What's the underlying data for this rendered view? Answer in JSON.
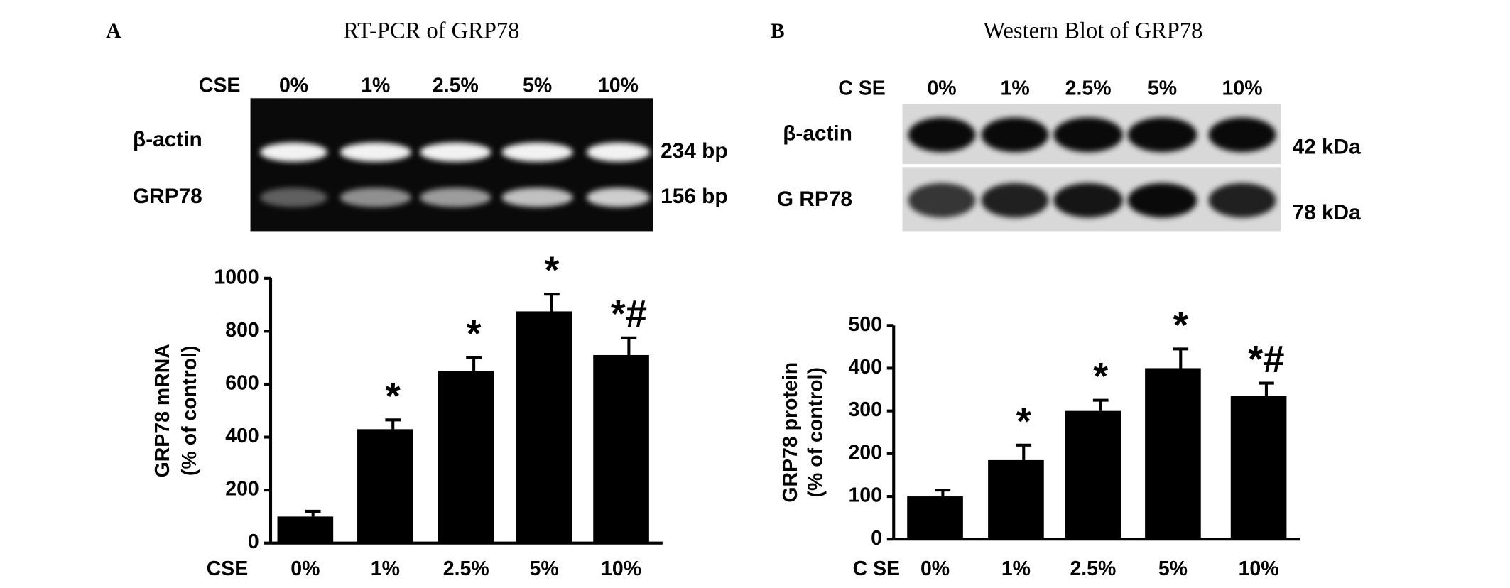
{
  "panels": [
    {
      "letter": "A",
      "title": "RT-PCR of GRP78",
      "gel": {
        "row_header": "CSE",
        "lanes": [
          "0%",
          "1%",
          "2.5%",
          "5%",
          "10%"
        ],
        "bands": [
          {
            "name": "β-actin",
            "size": "234 bp"
          },
          {
            "name": "GRP78",
            "size": "156 bp"
          }
        ]
      }
    },
    {
      "letter": "B",
      "title": "Western Blot of GRP78",
      "gel": {
        "row_header": "C SE",
        "lanes": [
          "0%",
          "1%",
          "2.5%",
          "5%",
          "10%"
        ],
        "bands": [
          {
            "name": "β-actin",
            "size": "42 kDa"
          },
          {
            "name": "G RP78",
            "size": "78 kDa"
          }
        ]
      }
    }
  ],
  "chart_data": [
    {
      "type": "bar",
      "y_label": [
        "GRP78 mRNA",
        "(% of control)"
      ],
      "category_header": "CSE",
      "categories": [
        "0%",
        "1%",
        "2.5%",
        "5%",
        "10%"
      ],
      "values": [
        100,
        430,
        650,
        875,
        710
      ],
      "errors": [
        20,
        35,
        50,
        65,
        65
      ],
      "annotations": [
        null,
        "*",
        "*",
        "*",
        "*#"
      ],
      "color": "#000000",
      "ylim": [
        0,
        1000
      ],
      "yticks": [
        0,
        200,
        400,
        600,
        800,
        1000
      ]
    },
    {
      "type": "bar",
      "y_label": [
        "GRP78 protein",
        "(% of control)"
      ],
      "category_header": "C SE",
      "categories": [
        "0%",
        "1%",
        "2.5%",
        "5%",
        "10%"
      ],
      "values": [
        100,
        185,
        300,
        400,
        335
      ],
      "errors": [
        15,
        35,
        25,
        45,
        30
      ],
      "annotations": [
        null,
        "*",
        "*",
        "*",
        "*#"
      ],
      "color": "#000000",
      "ylim": [
        0,
        500
      ],
      "yticks": [
        0,
        100,
        200,
        300,
        400,
        500
      ]
    }
  ]
}
